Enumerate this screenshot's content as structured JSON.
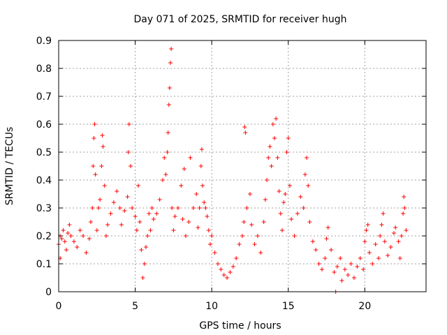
{
  "chart_data": {
    "type": "scatter",
    "title": "Day 071 of 2025, SRMTID for receiver hugh",
    "xlabel": "GPS time / hours",
    "ylabel": "SRMTID / TECUs",
    "xlim": [
      0,
      24
    ],
    "ylim": [
      0,
      0.9
    ],
    "x_ticks": [
      0,
      5,
      10,
      15,
      20
    ],
    "x_tick_labels": [
      "0",
      "5",
      "10",
      "15",
      "20"
    ],
    "y_ticks": [
      0,
      0.1,
      0.2,
      0.3,
      0.4,
      0.5,
      0.6,
      0.7,
      0.8,
      0.9
    ],
    "y_tick_labels": [
      "0",
      "0.1",
      "0.2",
      "0.3",
      "0.4",
      "0.5",
      "0.6",
      "0.7",
      "0.8",
      "0.9"
    ],
    "grid": true,
    "marker": "plus",
    "color": "#ff0000",
    "series": [
      {
        "name": "SRMTID",
        "points": [
          [
            0.0,
            0.17
          ],
          [
            0.1,
            0.12
          ],
          [
            0.1,
            0.2
          ],
          [
            0.2,
            0.19
          ],
          [
            0.3,
            0.22
          ],
          [
            0.4,
            0.18
          ],
          [
            0.5,
            0.15
          ],
          [
            0.6,
            0.21
          ],
          [
            0.7,
            0.24
          ],
          [
            0.8,
            0.2
          ],
          [
            1.0,
            0.18
          ],
          [
            1.2,
            0.16
          ],
          [
            1.4,
            0.22
          ],
          [
            1.6,
            0.2
          ],
          [
            1.8,
            0.14
          ],
          [
            2.0,
            0.19
          ],
          [
            2.1,
            0.25
          ],
          [
            2.2,
            0.3
          ],
          [
            2.25,
            0.45
          ],
          [
            2.3,
            0.55
          ],
          [
            2.35,
            0.6
          ],
          [
            2.4,
            0.42
          ],
          [
            2.5,
            0.22
          ],
          [
            2.6,
            0.3
          ],
          [
            2.7,
            0.33
          ],
          [
            2.8,
            0.45
          ],
          [
            2.85,
            0.56
          ],
          [
            2.9,
            0.52
          ],
          [
            3.0,
            0.38
          ],
          [
            3.1,
            0.2
          ],
          [
            3.2,
            0.24
          ],
          [
            3.4,
            0.28
          ],
          [
            3.6,
            0.32
          ],
          [
            3.8,
            0.36
          ],
          [
            4.0,
            0.3
          ],
          [
            4.1,
            0.24
          ],
          [
            4.3,
            0.29
          ],
          [
            4.5,
            0.34
          ],
          [
            4.55,
            0.5
          ],
          [
            4.6,
            0.6
          ],
          [
            4.7,
            0.45
          ],
          [
            4.8,
            0.3
          ],
          [
            5.0,
            0.27
          ],
          [
            5.1,
            0.22
          ],
          [
            5.2,
            0.38
          ],
          [
            5.3,
            0.25
          ],
          [
            5.4,
            0.15
          ],
          [
            5.5,
            0.05
          ],
          [
            5.6,
            0.1
          ],
          [
            5.7,
            0.16
          ],
          [
            5.8,
            0.2
          ],
          [
            5.9,
            0.28
          ],
          [
            6.0,
            0.22
          ],
          [
            6.1,
            0.3
          ],
          [
            6.2,
            0.26
          ],
          [
            6.4,
            0.28
          ],
          [
            6.6,
            0.33
          ],
          [
            6.8,
            0.4
          ],
          [
            6.9,
            0.48
          ],
          [
            7.0,
            0.42
          ],
          [
            7.1,
            0.5
          ],
          [
            7.15,
            0.57
          ],
          [
            7.2,
            0.67
          ],
          [
            7.25,
            0.73
          ],
          [
            7.3,
            0.82
          ],
          [
            7.35,
            0.87
          ],
          [
            7.4,
            0.3
          ],
          [
            7.5,
            0.22
          ],
          [
            7.6,
            0.27
          ],
          [
            7.8,
            0.3
          ],
          [
            8.0,
            0.38
          ],
          [
            8.1,
            0.26
          ],
          [
            8.2,
            0.44
          ],
          [
            8.3,
            0.2
          ],
          [
            8.5,
            0.25
          ],
          [
            8.6,
            0.48
          ],
          [
            8.8,
            0.3
          ],
          [
            9.0,
            0.35
          ],
          [
            9.1,
            0.23
          ],
          [
            9.2,
            0.3
          ],
          [
            9.3,
            0.45
          ],
          [
            9.35,
            0.51
          ],
          [
            9.4,
            0.38
          ],
          [
            9.5,
            0.32
          ],
          [
            9.6,
            0.3
          ],
          [
            9.7,
            0.27
          ],
          [
            9.8,
            0.22
          ],
          [
            9.9,
            0.17
          ],
          [
            10.0,
            0.2
          ],
          [
            10.2,
            0.14
          ],
          [
            10.4,
            0.1
          ],
          [
            10.6,
            0.08
          ],
          [
            10.8,
            0.06
          ],
          [
            11.0,
            0.05
          ],
          [
            11.2,
            0.07
          ],
          [
            11.4,
            0.09
          ],
          [
            11.6,
            0.12
          ],
          [
            11.8,
            0.17
          ],
          [
            12.0,
            0.2
          ],
          [
            12.1,
            0.25
          ],
          [
            12.15,
            0.59
          ],
          [
            12.2,
            0.57
          ],
          [
            12.3,
            0.3
          ],
          [
            12.5,
            0.35
          ],
          [
            12.6,
            0.24
          ],
          [
            12.8,
            0.17
          ],
          [
            13.0,
            0.2
          ],
          [
            13.2,
            0.14
          ],
          [
            13.4,
            0.25
          ],
          [
            13.5,
            0.33
          ],
          [
            13.6,
            0.4
          ],
          [
            13.7,
            0.48
          ],
          [
            13.8,
            0.52
          ],
          [
            13.9,
            0.45
          ],
          [
            14.0,
            0.6
          ],
          [
            14.1,
            0.55
          ],
          [
            14.2,
            0.62
          ],
          [
            14.3,
            0.48
          ],
          [
            14.4,
            0.36
          ],
          [
            14.5,
            0.28
          ],
          [
            14.6,
            0.22
          ],
          [
            14.7,
            0.32
          ],
          [
            14.8,
            0.35
          ],
          [
            14.9,
            0.5
          ],
          [
            15.0,
            0.55
          ],
          [
            15.1,
            0.38
          ],
          [
            15.2,
            0.26
          ],
          [
            15.4,
            0.2
          ],
          [
            15.6,
            0.28
          ],
          [
            15.8,
            0.34
          ],
          [
            16.0,
            0.3
          ],
          [
            16.1,
            0.42
          ],
          [
            16.2,
            0.48
          ],
          [
            16.3,
            0.38
          ],
          [
            16.4,
            0.25
          ],
          [
            16.6,
            0.18
          ],
          [
            16.8,
            0.15
          ],
          [
            17.0,
            0.1
          ],
          [
            17.2,
            0.08
          ],
          [
            17.4,
            0.12
          ],
          [
            17.5,
            0.19
          ],
          [
            17.6,
            0.23
          ],
          [
            17.8,
            0.15
          ],
          [
            18.0,
            0.07
          ],
          [
            18.1,
            0.0
          ],
          [
            18.2,
            0.09
          ],
          [
            18.4,
            0.12
          ],
          [
            18.5,
            0.04
          ],
          [
            18.7,
            0.08
          ],
          [
            18.9,
            0.06
          ],
          [
            19.1,
            0.1
          ],
          [
            19.3,
            0.05
          ],
          [
            19.5,
            0.09
          ],
          [
            19.7,
            0.12
          ],
          [
            19.9,
            0.08
          ],
          [
            20.0,
            0.18
          ],
          [
            20.1,
            0.22
          ],
          [
            20.2,
            0.24
          ],
          [
            20.3,
            0.14
          ],
          [
            20.5,
            0.1
          ],
          [
            20.7,
            0.17
          ],
          [
            20.9,
            0.12
          ],
          [
            21.0,
            0.2
          ],
          [
            21.1,
            0.24
          ],
          [
            21.2,
            0.28
          ],
          [
            21.3,
            0.18
          ],
          [
            21.5,
            0.13
          ],
          [
            21.7,
            0.16
          ],
          [
            21.9,
            0.21
          ],
          [
            22.0,
            0.23
          ],
          [
            22.2,
            0.18
          ],
          [
            22.3,
            0.12
          ],
          [
            22.4,
            0.2
          ],
          [
            22.5,
            0.28
          ],
          [
            22.55,
            0.34
          ],
          [
            22.6,
            0.3
          ],
          [
            22.7,
            0.22
          ]
        ]
      }
    ]
  }
}
